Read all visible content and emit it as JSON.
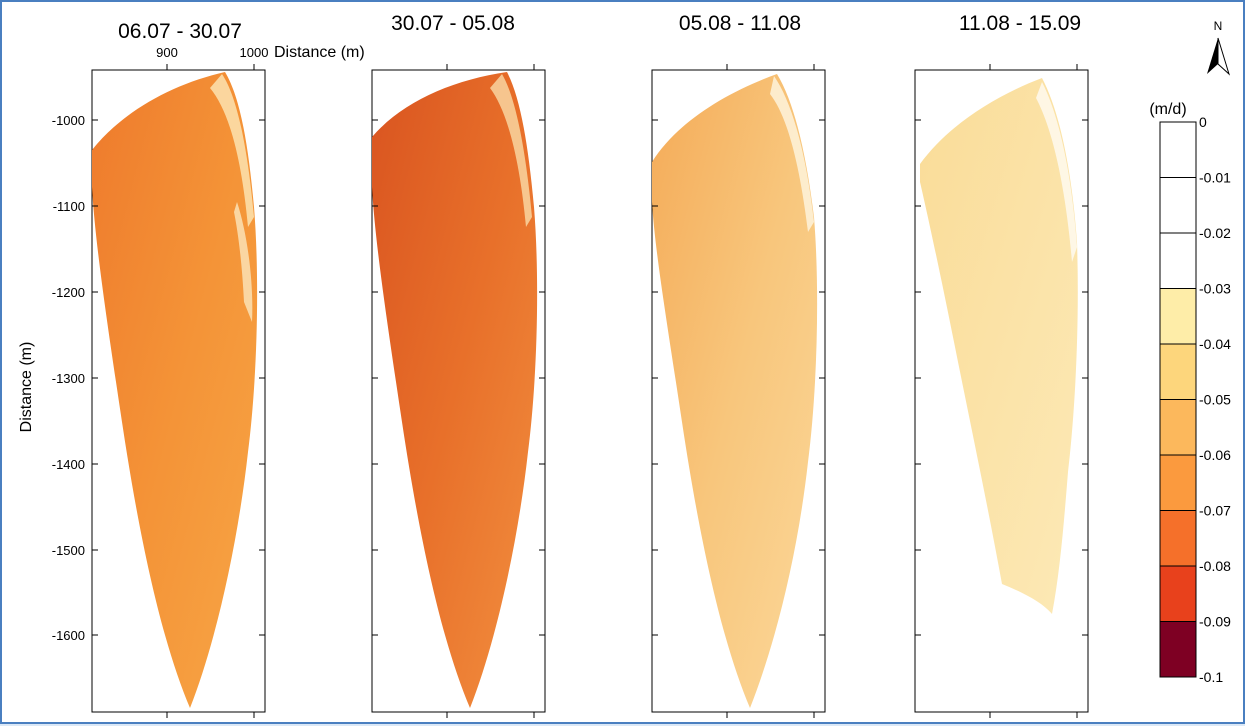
{
  "panels": [
    {
      "title": "06.07 - 30.07",
      "zone": "orange"
    },
    {
      "title": "30.07 - 05.08",
      "zone": "darkorange"
    },
    {
      "title": "05.08 - 11.08",
      "zone": "light"
    },
    {
      "title": "11.08 - 15.09",
      "zone": "pale"
    }
  ],
  "axes": {
    "xlabel": "Distance (m)",
    "ylabel": "Distance (m)",
    "xticks": [
      "900",
      "1000"
    ],
    "yticks": [
      "-1000",
      "-1100",
      "-1200",
      "-1300",
      "-1400",
      "-1500",
      "-1600"
    ]
  },
  "north_arrow": {
    "label": "N"
  },
  "legend": {
    "unit": "(m/d)",
    "labels": [
      "0",
      "-0.01",
      "-0.02",
      "-0.03",
      "-0.04",
      "-0.05",
      "-0.06",
      "-0.07",
      "-0.08",
      "-0.09",
      "-0.1"
    ],
    "colors": [
      "#ffffff",
      "#ffffff",
      "#ffffff",
      "#feeda8",
      "#fdd67c",
      "#fcb85c",
      "#fb9a3e",
      "#f5702a",
      "#e8411c",
      "#7e0023"
    ]
  },
  "palette": {
    "orange": "#f59538",
    "darkorange": "#e86a26",
    "light": "#f9c878",
    "pale": "#fbe4a6",
    "frame_blue": "#4a7fc0",
    "bg_blue": "#dbe8f6"
  }
}
